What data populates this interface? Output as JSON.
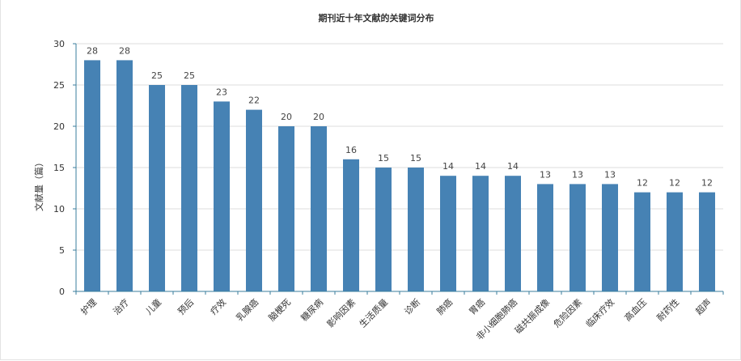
{
  "chart_data": {
    "type": "bar",
    "title": "期刊近十年文献的关键词分布",
    "xlabel": "",
    "ylabel": "文献量（篇）",
    "ylim": [
      0,
      30
    ],
    "yticks": [
      0,
      5,
      10,
      15,
      20,
      25,
      30
    ],
    "grid": true,
    "bar_color": "#4682b4",
    "categories": [
      "护理",
      "治疗",
      "儿童",
      "预后",
      "疗效",
      "乳腺癌",
      "脑梗死",
      "糖尿病",
      "影响因素",
      "生活质量",
      "诊断",
      "肺癌",
      "胃癌",
      "非小细胞肺癌",
      "磁共振成像",
      "危险因素",
      "临床疗效",
      "高血压",
      "耐药性",
      "超声"
    ],
    "values": [
      28,
      28,
      25,
      25,
      23,
      22,
      20,
      20,
      16,
      15,
      15,
      14,
      14,
      14,
      13,
      13,
      13,
      12,
      12,
      12
    ]
  }
}
